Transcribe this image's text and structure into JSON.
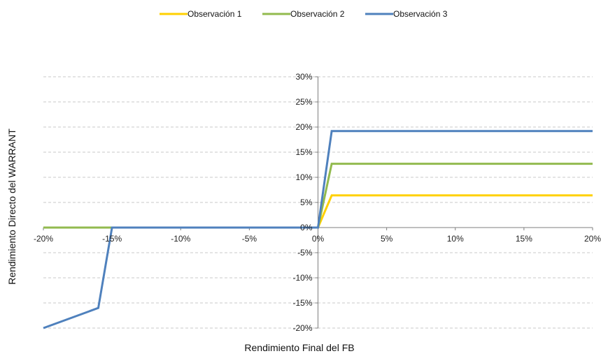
{
  "chart_data": {
    "type": "line",
    "title": "",
    "xlabel": "Rendimiento Final del FB",
    "ylabel": "Rendimiento Directo del WARRANT",
    "xlim": [
      -0.2,
      0.2
    ],
    "ylim": [
      -0.2,
      0.3
    ],
    "x_ticks": [
      -0.2,
      -0.15,
      -0.1,
      -0.05,
      0.0,
      0.05,
      0.1,
      0.15,
      0.2
    ],
    "x_tick_labels": [
      "-20%",
      "-15%",
      "-10%",
      "-5%",
      "0%",
      "5%",
      "10%",
      "15%",
      "20%"
    ],
    "y_ticks": [
      -0.2,
      -0.15,
      -0.1,
      -0.05,
      0.0,
      0.05,
      0.1,
      0.15,
      0.2,
      0.25,
      0.3
    ],
    "y_tick_labels": [
      "-20%",
      "-15%",
      "-10%",
      "-5%",
      "0%",
      "5%",
      "10%",
      "15%",
      "20%",
      "25%",
      "30%"
    ],
    "grid": "horizontal dashed",
    "legend_position": "top-center",
    "series": [
      {
        "name": "Observación 1",
        "color": "#FFD000",
        "x": [
          -0.2,
          -0.15,
          0.0,
          0.01,
          0.2
        ],
        "y": [
          0.0,
          0.0,
          0.0,
          0.064,
          0.064
        ]
      },
      {
        "name": "Observación 2",
        "color": "#92BA4E",
        "x": [
          -0.2,
          -0.15,
          0.0,
          0.01,
          0.2
        ],
        "y": [
          0.0,
          0.0,
          0.0,
          0.127,
          0.127
        ]
      },
      {
        "name": "Observación 3",
        "color": "#4F81BD",
        "x": [
          -0.2,
          -0.16,
          -0.15,
          0.0,
          0.01,
          0.2
        ],
        "y": [
          -0.2,
          -0.16,
          0.0,
          0.0,
          0.192,
          0.192
        ]
      }
    ]
  }
}
